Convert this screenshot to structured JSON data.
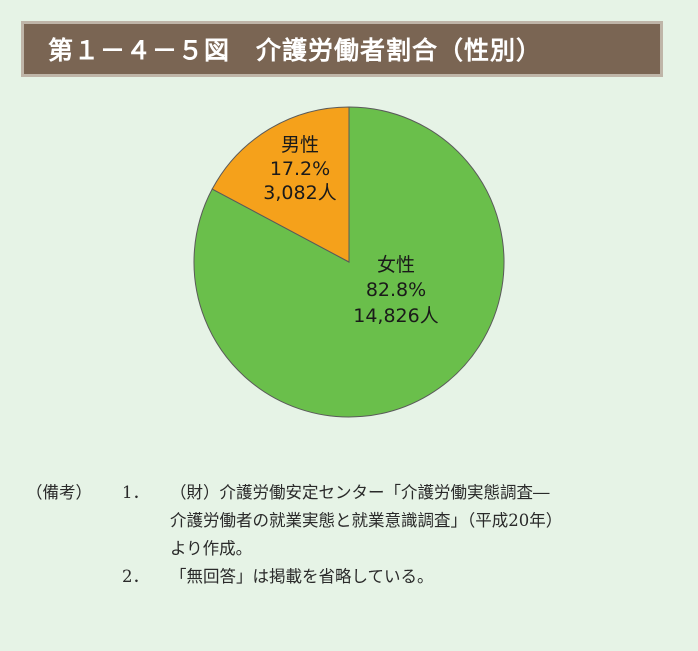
{
  "title": "第１－４－５図　介護労働者割合（性別）",
  "chart_data": {
    "type": "pie",
    "slices": [
      {
        "label": "女性",
        "percent_text": "82.8%",
        "count_text": "14,826人",
        "value": 82.8,
        "color": "#6abf4b"
      },
      {
        "label": "男性",
        "percent_text": "17.2%",
        "count_text": "3,082人",
        "value": 17.2,
        "color": "#f5a11b"
      }
    ]
  },
  "notes": {
    "label": "（備考）",
    "items": [
      {
        "num": "1．",
        "lines": [
          "（財）介護労働安定センター「介護労働実態調査―",
          "介護労働者の就業実態と就業意識調査」（平成20年）",
          "より作成。"
        ]
      },
      {
        "num": "2．",
        "lines": [
          "「無回答」は掲載を省略している。"
        ]
      }
    ]
  }
}
